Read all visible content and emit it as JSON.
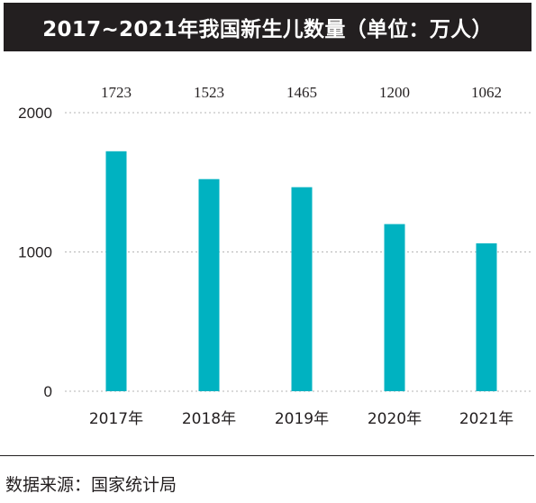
{
  "title": "2017~2021年我国新生儿数量（单位：万人）",
  "source": "数据来源：国家统计局",
  "chart_data": {
    "type": "bar",
    "title": "2017~2021年我国新生儿数量（单位：万人）",
    "categories": [
      "2017年",
      "2018年",
      "2019年",
      "2020年",
      "2021年"
    ],
    "values": [
      1723,
      1523,
      1465,
      1200,
      1062
    ],
    "data_labels": [
      "1723",
      "1523",
      "1465",
      "1200",
      "1062"
    ],
    "ylim": [
      0,
      2000
    ],
    "yticks": [
      0,
      1000,
      2000
    ],
    "ytick_labels": [
      "0",
      "1000",
      "2000"
    ],
    "xlabel": "",
    "ylabel": "",
    "grid": true,
    "grid_style": "dotted",
    "bar_color": "#00b2c1",
    "legend": "none"
  }
}
